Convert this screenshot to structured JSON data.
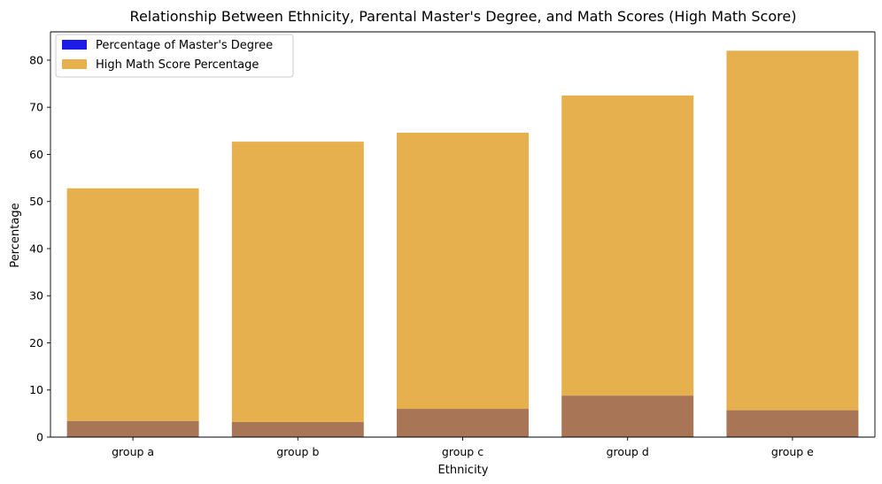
{
  "chart_data": {
    "type": "bar",
    "title": "Relationship Between Ethnicity, Parental Master's Degree, and Math Scores (High Math Score)",
    "xlabel": "Ethnicity",
    "ylabel": "Percentage",
    "categories": [
      "group a",
      "group b",
      "group c",
      "group d",
      "group e"
    ],
    "ylim": [
      0,
      86
    ],
    "yticks": [
      0,
      10,
      20,
      30,
      40,
      50,
      60,
      70,
      80
    ],
    "grid": false,
    "legend_position": "top-left",
    "series": [
      {
        "name": "Percentage of Master's Degree",
        "color": "#1c1ce6",
        "values": [
          3.4,
          3.2,
          6.0,
          8.8,
          5.7
        ]
      },
      {
        "name": "High Math Score Percentage",
        "color": "#e6b04e",
        "values": [
          52.8,
          62.7,
          64.6,
          72.5,
          82.0
        ]
      }
    ],
    "overlap_color": "#a87556"
  }
}
